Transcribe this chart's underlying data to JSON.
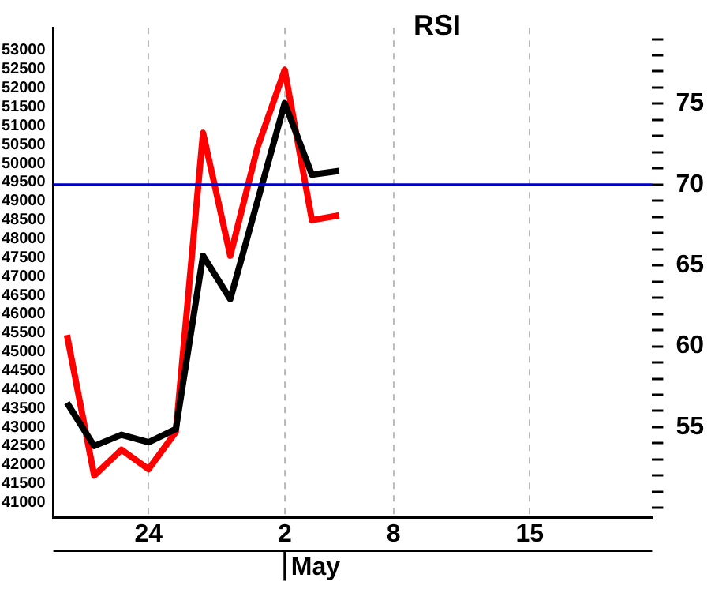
{
  "chart_data": {
    "type": "line",
    "title": "RSI",
    "xlabel": "May",
    "categories": [
      null,
      null,
      null,
      "24",
      null,
      null,
      null,
      null,
      "2",
      null,
      null,
      null,
      "8",
      null,
      null,
      null,
      null,
      "15",
      null,
      null,
      null,
      null
    ],
    "ylim": [
      40600,
      53600
    ],
    "yticks": [
      41000,
      41500,
      42000,
      42500,
      43000,
      43500,
      44000,
      44500,
      45000,
      45500,
      46000,
      46500,
      47000,
      47500,
      48000,
      48500,
      49000,
      49500,
      50000,
      50500,
      51000,
      51500,
      52000,
      52500,
      53000
    ],
    "y2lim": [
      49.4,
      79.7
    ],
    "y2ticks": [
      {
        "value": 50,
        "label": null
      },
      {
        "value": 51,
        "label": null
      },
      {
        "value": 52,
        "label": null
      },
      {
        "value": 53,
        "label": null
      },
      {
        "value": 54,
        "label": null
      },
      55,
      {
        "value": 56,
        "label": null
      },
      {
        "value": 57,
        "label": null
      },
      {
        "value": 58,
        "label": null
      },
      {
        "value": 59,
        "label": null
      },
      60,
      {
        "value": 61,
        "label": null
      },
      {
        "value": 62,
        "label": null
      },
      {
        "value": 63,
        "label": null
      },
      {
        "value": 64,
        "label": null
      },
      65,
      {
        "value": 66,
        "label": null
      },
      {
        "value": 67,
        "label": null
      },
      {
        "value": 68,
        "label": null
      },
      {
        "value": 69,
        "label": null
      },
      70,
      {
        "value": 71,
        "label": null
      },
      {
        "value": 72,
        "label": null
      },
      {
        "value": 73,
        "label": null
      },
      {
        "value": 74,
        "label": null
      },
      75,
      {
        "value": 76,
        "label": null
      },
      {
        "value": 77,
        "label": null
      },
      {
        "value": 78,
        "label": null
      },
      {
        "value": 79,
        "label": null
      }
    ],
    "series": [
      {
        "color": "#000000",
        "values": [
          43650,
          42500,
          42800,
          42600,
          42950,
          47550,
          46400,
          49000,
          51600,
          49700,
          49800,
          null,
          null,
          null,
          null,
          null,
          null,
          null,
          null,
          null,
          null,
          null
        ]
      },
      {
        "color": "#ff0000",
        "axis": "y2",
        "values": [
          60.7,
          52.0,
          53.6,
          52.4,
          54.7,
          73.2,
          65.6,
          72.3,
          77.1,
          67.8,
          68.1,
          null,
          null,
          null,
          null,
          null,
          null,
          null,
          null,
          null,
          null,
          null
        ]
      }
    ],
    "ref_lines": [
      {
        "axis": "y2",
        "value": 70,
        "color": "#0000cc"
      }
    ],
    "grid": "x",
    "legend": false,
    "marker": "none",
    "line_style": "solid"
  }
}
